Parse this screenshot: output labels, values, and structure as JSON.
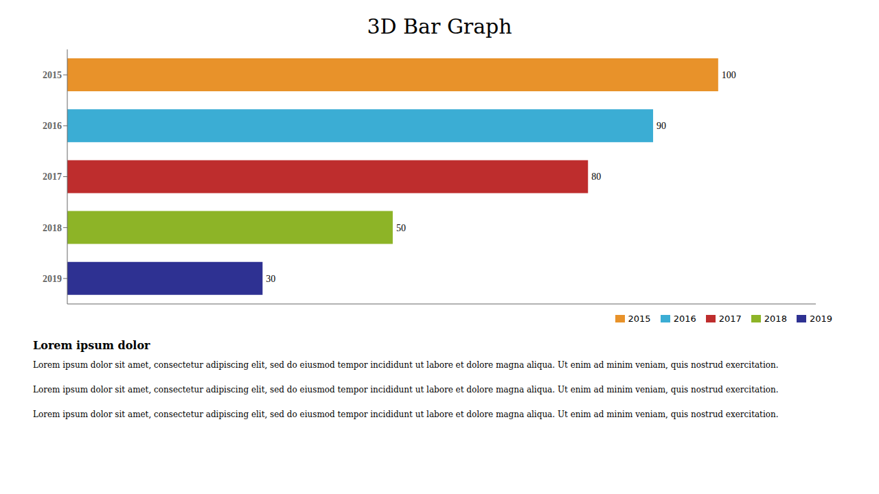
{
  "chart_data": {
    "type": "bar",
    "title": "3D Bar Graph",
    "orientation": "horizontal",
    "categories": [
      "2015",
      "2016",
      "2017",
      "2018",
      "2019"
    ],
    "values": [
      100,
      90,
      80,
      50,
      30
    ],
    "colors": [
      "#E8922A",
      "#3BADD4",
      "#BE2D2D",
      "#8DB427",
      "#2E3192"
    ],
    "xlim": [
      0,
      115
    ],
    "tick_labels": "y",
    "data_labels": true,
    "legend": "lower right",
    "annotations": [
      "Lorem ipsum dolor",
      "Lorem ipsum dolor sit amet, consectetur adipiscing elit, sed do eiusmod tempor incididunt ut labore et dolore magna aliqua. Ut enim ad minim veniam, quis nostrud exercitation.",
      "Lorem ipsum dolor sit amet, consectetur adipiscing elit, sed do eiusmod tempor incididunt ut labore et dolore magna aliqua. Ut enim ad minim veniam, quis nostrud exercitation.",
      "Lorem ipsum dolor sit amet, consectetur adipiscing elit, sed do eiusmod tempor incididunt ut labore et dolore magna aliqua. Ut enim ad minim veniam, quis nostrud exercitation."
    ]
  }
}
